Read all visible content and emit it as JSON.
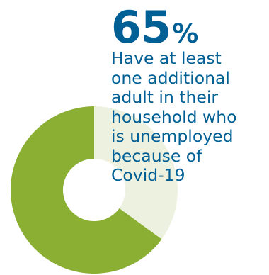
{
  "chart_data": {
    "type": "pie",
    "variant": "donut",
    "slices": [
      {
        "value": 65,
        "color": "#8aaf33",
        "highlight": true
      },
      {
        "value": 35,
        "color": "#edf2e0",
        "highlight": false
      }
    ],
    "headline": {
      "number": "65",
      "unit": "%"
    },
    "caption_lines": [
      "Have at least",
      "one additional",
      "adult in their",
      "household who",
      "is unemployed",
      "because of",
      "Covid-19"
    ]
  },
  "colors": {
    "text": "#005f95",
    "highlight_slice": "#8aaf33",
    "remainder_slice": "#edf2e0",
    "background": "#ffffff"
  }
}
